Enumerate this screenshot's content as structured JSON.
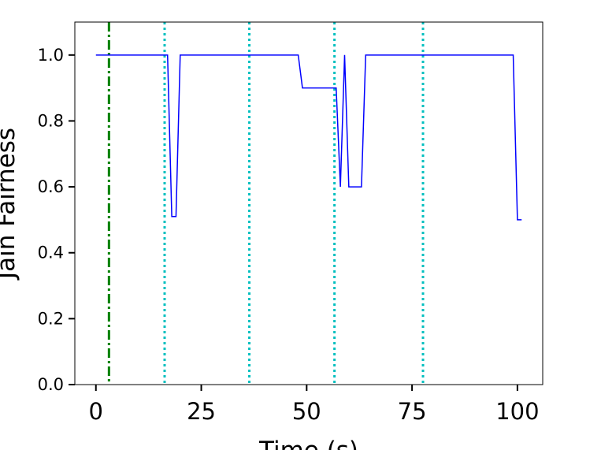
{
  "chart_data": {
    "type": "line",
    "title": "",
    "xlabel": "Time (s)",
    "ylabel": "Jain Fairness",
    "xlim": [
      -5,
      106
    ],
    "ylim": [
      0,
      1.1
    ],
    "xticks": [
      0,
      25,
      50,
      75,
      100
    ],
    "yticks": [
      0.0,
      0.2,
      0.4,
      0.6,
      0.8,
      1.0
    ],
    "xtick_labels": [
      "0",
      "25",
      "50",
      "75",
      "100"
    ],
    "ytick_labels": [
      "0.0",
      "0.2",
      "0.4",
      "0.6",
      "0.8",
      "1.0"
    ],
    "grid": false,
    "series": [
      {
        "color": "#0000ff",
        "style": "solid",
        "x": [
          0,
          17,
          18,
          19,
          20,
          48,
          49,
          57,
          58,
          59,
          60,
          63,
          64,
          99,
          100,
          101
        ],
        "y": [
          1.0,
          1.0,
          0.51,
          0.51,
          1.0,
          1.0,
          0.9,
          0.9,
          0.6,
          1.0,
          0.6,
          0.6,
          1.0,
          1.0,
          0.5,
          0.5
        ]
      }
    ],
    "vertical_lines": [
      {
        "x": 3.1,
        "color": "#008000",
        "style": "dashdot"
      },
      {
        "x": 16.3,
        "color": "#00bfbf",
        "style": "dotted"
      },
      {
        "x": 36.4,
        "color": "#00bfbf",
        "style": "dotted"
      },
      {
        "x": 56.6,
        "color": "#00bfbf",
        "style": "dotted"
      },
      {
        "x": 77.6,
        "color": "#00bfbf",
        "style": "dotted"
      }
    ]
  }
}
